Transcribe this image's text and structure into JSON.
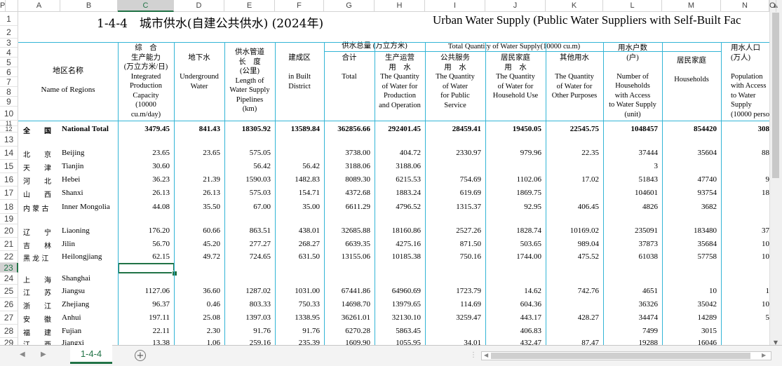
{
  "columns": [
    "A",
    "B",
    "C",
    "D",
    "E",
    "F",
    "G",
    "H",
    "I",
    "J",
    "K",
    "L",
    "M",
    "N",
    "O",
    "P"
  ],
  "selected_column": "C",
  "rows": [
    "1",
    "2",
    "3",
    "4",
    "5",
    "6",
    "7",
    "8",
    "9",
    "10",
    "11",
    "12",
    "13",
    "14",
    "15",
    "16",
    "17",
    "18",
    "19",
    "20",
    "21",
    "22",
    "23",
    "24",
    "25",
    "26",
    "27",
    "28",
    "29"
  ],
  "selected_row": "23",
  "title_cn": "1-4-4　城市供水(自建公共供水) (2024年)",
  "title_en": "Urban Water Supply (Public Water Suppliers with Self-Built Fac",
  "headers": {
    "region_cn": "地区名称",
    "region_en": "Name of Regions",
    "capacity": "综　合\n生产能力\n(万立方米/日)\nIntegrated\nProduction\nCapacity\n(10000\ncu.m/day)",
    "groundwater": "地下水\n\nUnderground\nWater",
    "pipelines": "供水管道\n长　度\n(公里)\nLength of\nWater Supply\nPipelines\n(km)",
    "built_district": "建成区\n\nin Built\nDistrict",
    "group_quantity": "供水总量 (万立方米)",
    "group_quantity_en": "Total Quantity of Water Supply(10000 cu.m)",
    "total": "合计\n\nTotal",
    "production": "生产运营\n用　水\nThe Quantity\nof Water for\nProduction\nand Operation",
    "public": "公共服务\n用　水\nThe Quantity\nof Water\nfor Public\nService",
    "household": "居民家庭\n用　水\nThe Quantity\nof Water for\nHousehold Use",
    "other": "其他用水\n\nThe Quantity\nof Water for\nOther Purposes",
    "households_n": "用水户数\n(户)\n\nNumber of\nHouseholds\nwith Access\nto Water Supply\n(unit)",
    "households_sub": "居民家庭\n\nHouseholds",
    "population": "用水人口\n(万人)\n\nPopulation\nwith Access\nto Water\nSupply\n(10000 perso"
  },
  "data_rows": [
    {
      "row": "12",
      "cn": "全　　国",
      "en": "National Total",
      "bold": true,
      "vals": [
        "3479.45",
        "841.43",
        "18305.92",
        "13589.84",
        "362856.66",
        "292401.45",
        "28459.41",
        "19450.05",
        "22545.75",
        "1048457",
        "854420",
        "308"
      ]
    },
    {
      "row": "14",
      "cn": "北　　京",
      "en": "Beijing",
      "vals": [
        "23.65",
        "23.65",
        "575.05",
        "",
        "3738.00",
        "404.72",
        "2330.97",
        "979.96",
        "22.35",
        "37444",
        "35604",
        "88"
      ]
    },
    {
      "row": "15",
      "cn": "天　　津",
      "en": "Tianjin",
      "vals": [
        "30.60",
        "",
        "56.42",
        "56.42",
        "3188.06",
        "3188.06",
        "",
        "",
        "",
        "3",
        "",
        ""
      ]
    },
    {
      "row": "16",
      "cn": "河　　北",
      "en": "Hebei",
      "vals": [
        "36.23",
        "21.39",
        "1590.03",
        "1482.83",
        "8089.30",
        "6215.53",
        "754.69",
        "1102.06",
        "17.02",
        "51843",
        "47740",
        "9"
      ]
    },
    {
      "row": "17",
      "cn": "山　　西",
      "en": "Shanxi",
      "vals": [
        "26.13",
        "26.13",
        "575.03",
        "154.71",
        "4372.68",
        "1883.24",
        "619.69",
        "1869.75",
        "",
        "104601",
        "93754",
        "18"
      ]
    },
    {
      "row": "18",
      "cn": "内 蒙 古",
      "en": "Inner Mongolia",
      "vals": [
        "44.08",
        "35.50",
        "67.00",
        "35.00",
        "6611.29",
        "4796.52",
        "1315.37",
        "92.95",
        "406.45",
        "4826",
        "3682",
        ""
      ]
    },
    {
      "row": "20",
      "cn": "辽　　宁",
      "en": "Liaoning",
      "vals": [
        "176.20",
        "60.66",
        "863.51",
        "438.01",
        "32685.88",
        "18160.86",
        "2527.26",
        "1828.74",
        "10169.02",
        "235091",
        "183480",
        "37"
      ]
    },
    {
      "row": "21",
      "cn": "吉　　林",
      "en": "Jilin",
      "vals": [
        "56.70",
        "45.20",
        "277.27",
        "268.27",
        "6639.35",
        "4275.16",
        "871.50",
        "503.65",
        "989.04",
        "37873",
        "35684",
        "10"
      ]
    },
    {
      "row": "22",
      "cn": "黑 龙 江",
      "en": "Heilongjiang",
      "vals": [
        "62.15",
        "49.72",
        "724.65",
        "631.50",
        "13155.06",
        "10185.38",
        "750.16",
        "1744.00",
        "475.52",
        "61038",
        "57758",
        "10"
      ]
    },
    {
      "row": "24",
      "cn": "上　　海",
      "en": "Shanghai",
      "vals": [
        "",
        "",
        "",
        "",
        "",
        "",
        "",
        "",
        "",
        "",
        "",
        ""
      ]
    },
    {
      "row": "25",
      "cn": "江　　苏",
      "en": "Jiangsu",
      "vals": [
        "1127.06",
        "36.60",
        "1287.02",
        "1031.00",
        "67441.86",
        "64960.69",
        "1723.79",
        "14.62",
        "742.76",
        "4651",
        "10",
        "1"
      ]
    },
    {
      "row": "26",
      "cn": "浙　　江",
      "en": "Zhejiang",
      "vals": [
        "96.37",
        "0.46",
        "803.33",
        "750.33",
        "14698.70",
        "13979.65",
        "114.69",
        "604.36",
        "",
        "36326",
        "35042",
        "10"
      ]
    },
    {
      "row": "27",
      "cn": "安　　徽",
      "en": "Anhui",
      "vals": [
        "197.11",
        "25.08",
        "1397.03",
        "1338.95",
        "36261.01",
        "32130.10",
        "3259.47",
        "443.17",
        "428.27",
        "34474",
        "14289",
        "5"
      ]
    },
    {
      "row": "28",
      "cn": "福　　建",
      "en": "Fujian",
      "vals": [
        "22.11",
        "2.30",
        "91.76",
        "91.76",
        "6270.28",
        "5863.45",
        "",
        "406.83",
        "",
        "7499",
        "3015",
        ""
      ]
    },
    {
      "row": "29",
      "cn": "江　　西",
      "en": "Jiangxi",
      "vals": [
        "13.38",
        "1.06",
        "259.16",
        "235.39",
        "1609.90",
        "1055.95",
        "34.01",
        "432.47",
        "87.47",
        "19288",
        "16046",
        ""
      ]
    }
  ],
  "sheet_tab": "1-4-4",
  "add_sheet": "+",
  "colors": {
    "accent": "#217346",
    "border": "#33b5d6"
  }
}
